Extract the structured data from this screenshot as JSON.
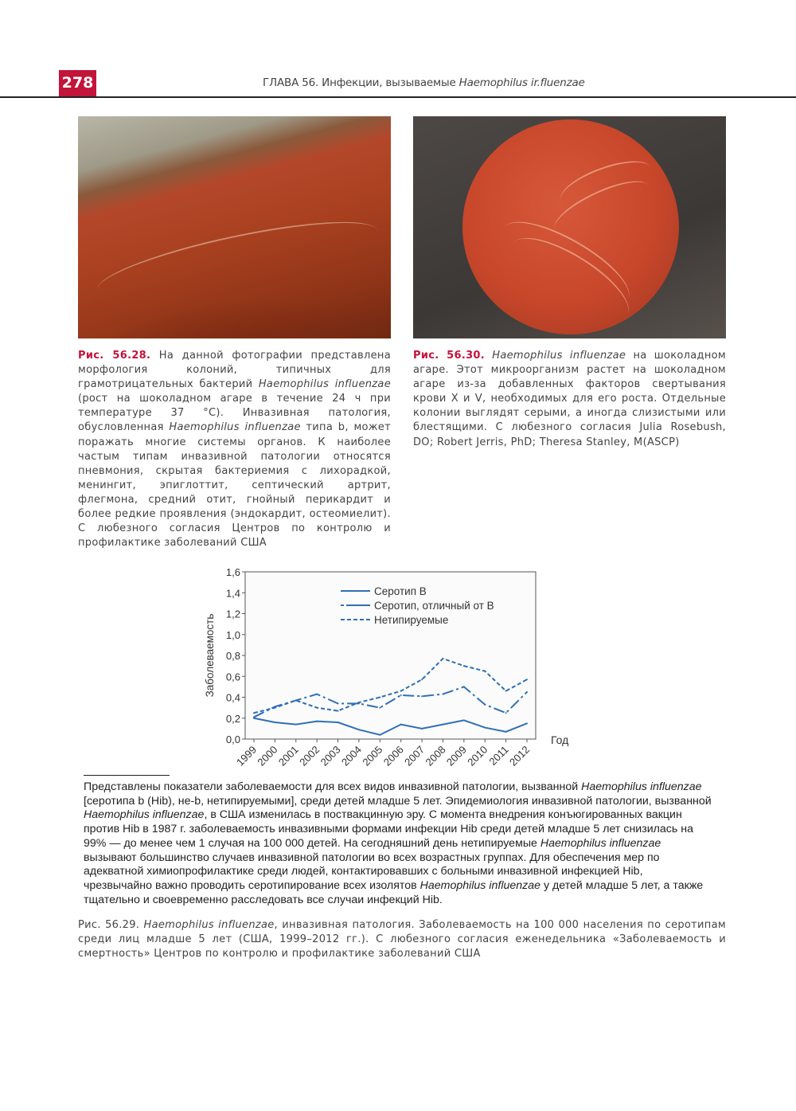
{
  "header": {
    "page_number": "278",
    "running_title": [
      {
        "t": "ГЛАВА 56. Инфекции, вызываемые "
      },
      {
        "t": "Haemophilus ir.fluenzae",
        "i": true
      }
    ]
  },
  "caption_left": [
    {
      "t": "Рис. 56.28.",
      "b": true
    },
    {
      "t": " На данной фотографии представлена морфология колоний, типичных для грамотрицательных бактерий "
    },
    {
      "t": "Haemophilus influenzae",
      "i": true
    },
    {
      "t": " (рост на шоколадном агаре в течение 24 ч при температуре 37 °С). Инвазивная патология, обусловленная "
    },
    {
      "t": "Haemophilus influenzae",
      "i": true
    },
    {
      "t": " типа b, может поражать многие системы органов. К наиболее частым типам инвазивной патологии относятся пневмония, скрытая бактериемия с лихорадкой, менингит, эпиглоттит, септический артрит, флегмона, средний отит, гнойный перикардит и более редкие проявления (эндокардит, остеомиелит). С любезного согласия Центров по контролю и профилактике заболеваний США"
    }
  ],
  "caption_right": [
    {
      "t": "Рис. 56.30.",
      "b": true
    },
    {
      "t": " "
    },
    {
      "t": "Haemophilus influenzae",
      "i": true
    },
    {
      "t": " на шоколадном агаре. Этот микроорганизм растет на шоколадном агаре из-за добавленных факторов свертывания крови X и V, необходимых для его роста. Отдельные колонии выглядят серыми, а иногда слизистыми или блестящими. С любезного согласия Julia Rosebush, DO; Robert Jerris, PhD; Theresa Stanley, M(ASCP)"
    }
  ],
  "chart_data": {
    "type": "line",
    "xlabel": "Год",
    "ylabel": "Заболеваемость",
    "x": [
      "1999",
      "2000",
      "2001",
      "2002",
      "2003",
      "2004",
      "2005",
      "2006",
      "2007",
      "2008",
      "2009",
      "2010",
      "2011",
      "2012"
    ],
    "ylim": [
      0,
      1.6
    ],
    "yticks": [
      "0,0",
      "0,2",
      "0,4",
      "0,6",
      "0,8",
      "1,0",
      "1,2",
      "1,4",
      "1,6"
    ],
    "grid": false,
    "legend_position": "top-center",
    "color": "#2f6fb5",
    "series": [
      {
        "name": "Серотип B",
        "style": "solid",
        "values": [
          0.2,
          0.16,
          0.14,
          0.17,
          0.16,
          0.09,
          0.04,
          0.14,
          0.1,
          0.14,
          0.18,
          0.11,
          0.07,
          0.15
        ]
      },
      {
        "name": "Серотип, отличный от B",
        "style": "dashdot",
        "values": [
          0.21,
          0.31,
          0.37,
          0.43,
          0.34,
          0.34,
          0.3,
          0.42,
          0.41,
          0.43,
          0.5,
          0.33,
          0.25,
          0.45
        ]
      },
      {
        "name": "Нетипируемые",
        "style": "dashed",
        "values": [
          0.25,
          0.3,
          0.37,
          0.3,
          0.27,
          0.35,
          0.4,
          0.46,
          0.57,
          0.77,
          0.7,
          0.65,
          0.46,
          0.57
        ]
      }
    ]
  },
  "note": [
    {
      "t": "Представлены показатели заболеваемости для всех видов инвазивной патологии, вызванной "
    },
    {
      "t": "Haemophilus influenzae",
      "i": true
    },
    {
      "t": " [серотипа b (Hib), не-b, нетипируемыми], среди детей младше 5 лет. Эпидемиология инвазивной патологии, вызванной "
    },
    {
      "t": "Haemophilus influenzae",
      "i": true
    },
    {
      "t": ", в США изменилась в поствакцинную эру. С момента внедрения конъюгированных вакцин против Hib в 1987 г. заболеваемость инвазивными формами инфекции Hib среди детей младше 5 лет снизилась на 99% — до менее чем 1 случая на 100 000 детей. На сегодняшний день нетипируемые "
    },
    {
      "t": "Haemophilus influenzae",
      "i": true
    },
    {
      "t": " вызывают большинство случаев инвазивной патологии во всех возрастных группах. Для обеспечения мер по адекватной химиопрофилактике среди людей, контактировавших с больными инвазивной инфекцией Hib, чрезвычайно важно проводить серотипирование всех изолятов "
    },
    {
      "t": "Haemophilus influenzae",
      "i": true
    },
    {
      "t": " у детей младше 5 лет, а также тщательно и своевременно расследовать все случаи инфекций Hib."
    }
  ],
  "figure_caption": [
    {
      "t": "Рис. 56.29.",
      "b": true
    },
    {
      "t": " "
    },
    {
      "t": "Haemophilus influenzae",
      "i": true
    },
    {
      "t": ", инвазивная патология. Заболеваемость на 100 000 населения по серотипам среди лиц младше 5 лет (США, 1999–2012 гг.). С любезного согласия еженедельника «Заболеваемость и смертность» Центров по контролю и профилактике заболеваний США"
    }
  ]
}
